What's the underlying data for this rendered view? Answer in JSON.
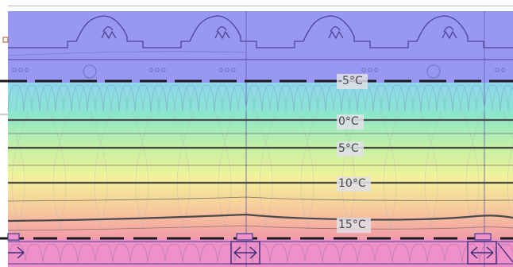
{
  "isotherms": [
    {
      "label": "-5°C"
    },
    {
      "label": "0°C"
    },
    {
      "label": "5°C"
    },
    {
      "label": "10°C"
    },
    {
      "label": "15°C"
    }
  ],
  "colors": {
    "cold": "#9898f2",
    "ice": "#8fd6ee",
    "teal": "#8ae6cd",
    "green": "#c6f0a3",
    "yellow": "#f2f29a",
    "orange": "#f7cc9a",
    "warm": "#f29aa8",
    "pink": "#f090c8",
    "outline": "#4b4596"
  },
  "icons": [
    "double-arrow-icon",
    "arrow-right-icon"
  ]
}
